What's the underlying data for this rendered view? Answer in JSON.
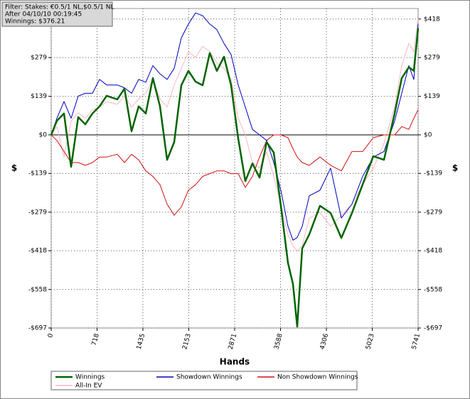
{
  "chart_data": {
    "type": "line",
    "info": [
      "Filter: Stakes: €0.5/1 NL,$0.5/1 NL",
      "After 04/10/10 00:19:45",
      "Winnings: $376.21"
    ],
    "xlabel": "Hands",
    "ylabel": "$",
    "x": [
      0,
      89,
      200,
      312,
      423,
      534,
      645,
      757,
      868,
      1035,
      1146,
      1257,
      1368,
      1480,
      1591,
      1702,
      1814,
      1925,
      2036,
      2147,
      2259,
      2370,
      2481,
      2592,
      2704,
      2815,
      2926,
      3037,
      3149,
      3260,
      3371,
      3482,
      3594,
      3705,
      3783,
      3850,
      3928,
      4039,
      4206,
      4373,
      4540,
      4706,
      4873,
      5040,
      5207,
      5374,
      5485,
      5596,
      5674,
      5741
    ],
    "series": [
      {
        "name": "All-In EV",
        "color": "#ffb6c1",
        "width": 1,
        "values": [
          0,
          30,
          -80,
          50,
          80,
          60,
          90,
          100,
          120,
          110,
          140,
          100,
          130,
          150,
          200,
          130,
          100,
          180,
          240,
          300,
          280,
          320,
          300,
          260,
          240,
          200,
          60,
          0,
          -100,
          -120,
          -60,
          -150,
          -250,
          -360,
          -400,
          -420,
          -400,
          -300,
          -280,
          -330,
          -290,
          -250,
          -180,
          -120,
          -30,
          100,
          250,
          330,
          300,
          420
        ]
      },
      {
        "name": "Non Showdown Winnings",
        "color": "#d01010",
        "width": 1,
        "values": [
          0,
          -20,
          -60,
          -100,
          -100,
          -110,
          -100,
          -80,
          -80,
          -70,
          -100,
          -70,
          -90,
          -130,
          -150,
          -180,
          -250,
          -290,
          -260,
          -200,
          -180,
          -150,
          -140,
          -130,
          -130,
          -140,
          -140,
          -190,
          -150,
          -80,
          -20,
          0,
          0,
          -10,
          -50,
          -80,
          -100,
          -110,
          -80,
          -110,
          -130,
          -60,
          -60,
          -10,
          0,
          0,
          30,
          20,
          60,
          90
        ]
      },
      {
        "name": "Showdown Winnings",
        "color": "#0000c0",
        "width": 1,
        "values": [
          0,
          60,
          120,
          60,
          140,
          150,
          150,
          200,
          180,
          180,
          170,
          150,
          200,
          190,
          250,
          220,
          200,
          240,
          350,
          400,
          440,
          430,
          400,
          380,
          330,
          290,
          180,
          100,
          20,
          0,
          -20,
          -100,
          -200,
          -330,
          -380,
          -370,
          -330,
          -220,
          -200,
          -120,
          -300,
          -250,
          -150,
          -80,
          -60,
          50,
          150,
          250,
          200,
          400
        ]
      },
      {
        "name": "Winnings",
        "color": "#006400",
        "width": 2.5,
        "values": [
          0,
          51,
          77,
          -115,
          64,
          38,
          77,
          103,
          141,
          128,
          167,
          13,
          103,
          77,
          205,
          103,
          -90,
          -26,
          179,
          231,
          192,
          179,
          295,
          231,
          282,
          179,
          -13,
          -167,
          -103,
          -154,
          -26,
          -64,
          -256,
          -462,
          -538,
          -692,
          -410,
          -359,
          -256,
          -282,
          -372,
          -282,
          -179,
          -77,
          -90,
          77,
          205,
          244,
          231,
          385
        ]
      }
    ],
    "legend_order": [
      3,
      2,
      1,
      0
    ],
    "xlim": [
      0,
      5741
    ],
    "xticks": [
      0,
      718,
      1435,
      2153,
      2871,
      3588,
      4306,
      5023,
      5741
    ],
    "ylim": [
      -697,
      456
    ],
    "yticks": [
      {
        "value": 418,
        "label": "$418"
      },
      {
        "value": 279,
        "label": "$279"
      },
      {
        "value": 139,
        "label": "$139"
      },
      {
        "value": 0,
        "label": "$0"
      },
      {
        "value": -139,
        "label": "-$139"
      },
      {
        "value": -279,
        "label": "-$279"
      },
      {
        "value": -418,
        "label": "-$418"
      },
      {
        "value": -558,
        "label": "-$558"
      },
      {
        "value": -697,
        "label": "-$697"
      }
    ],
    "grid": true
  }
}
